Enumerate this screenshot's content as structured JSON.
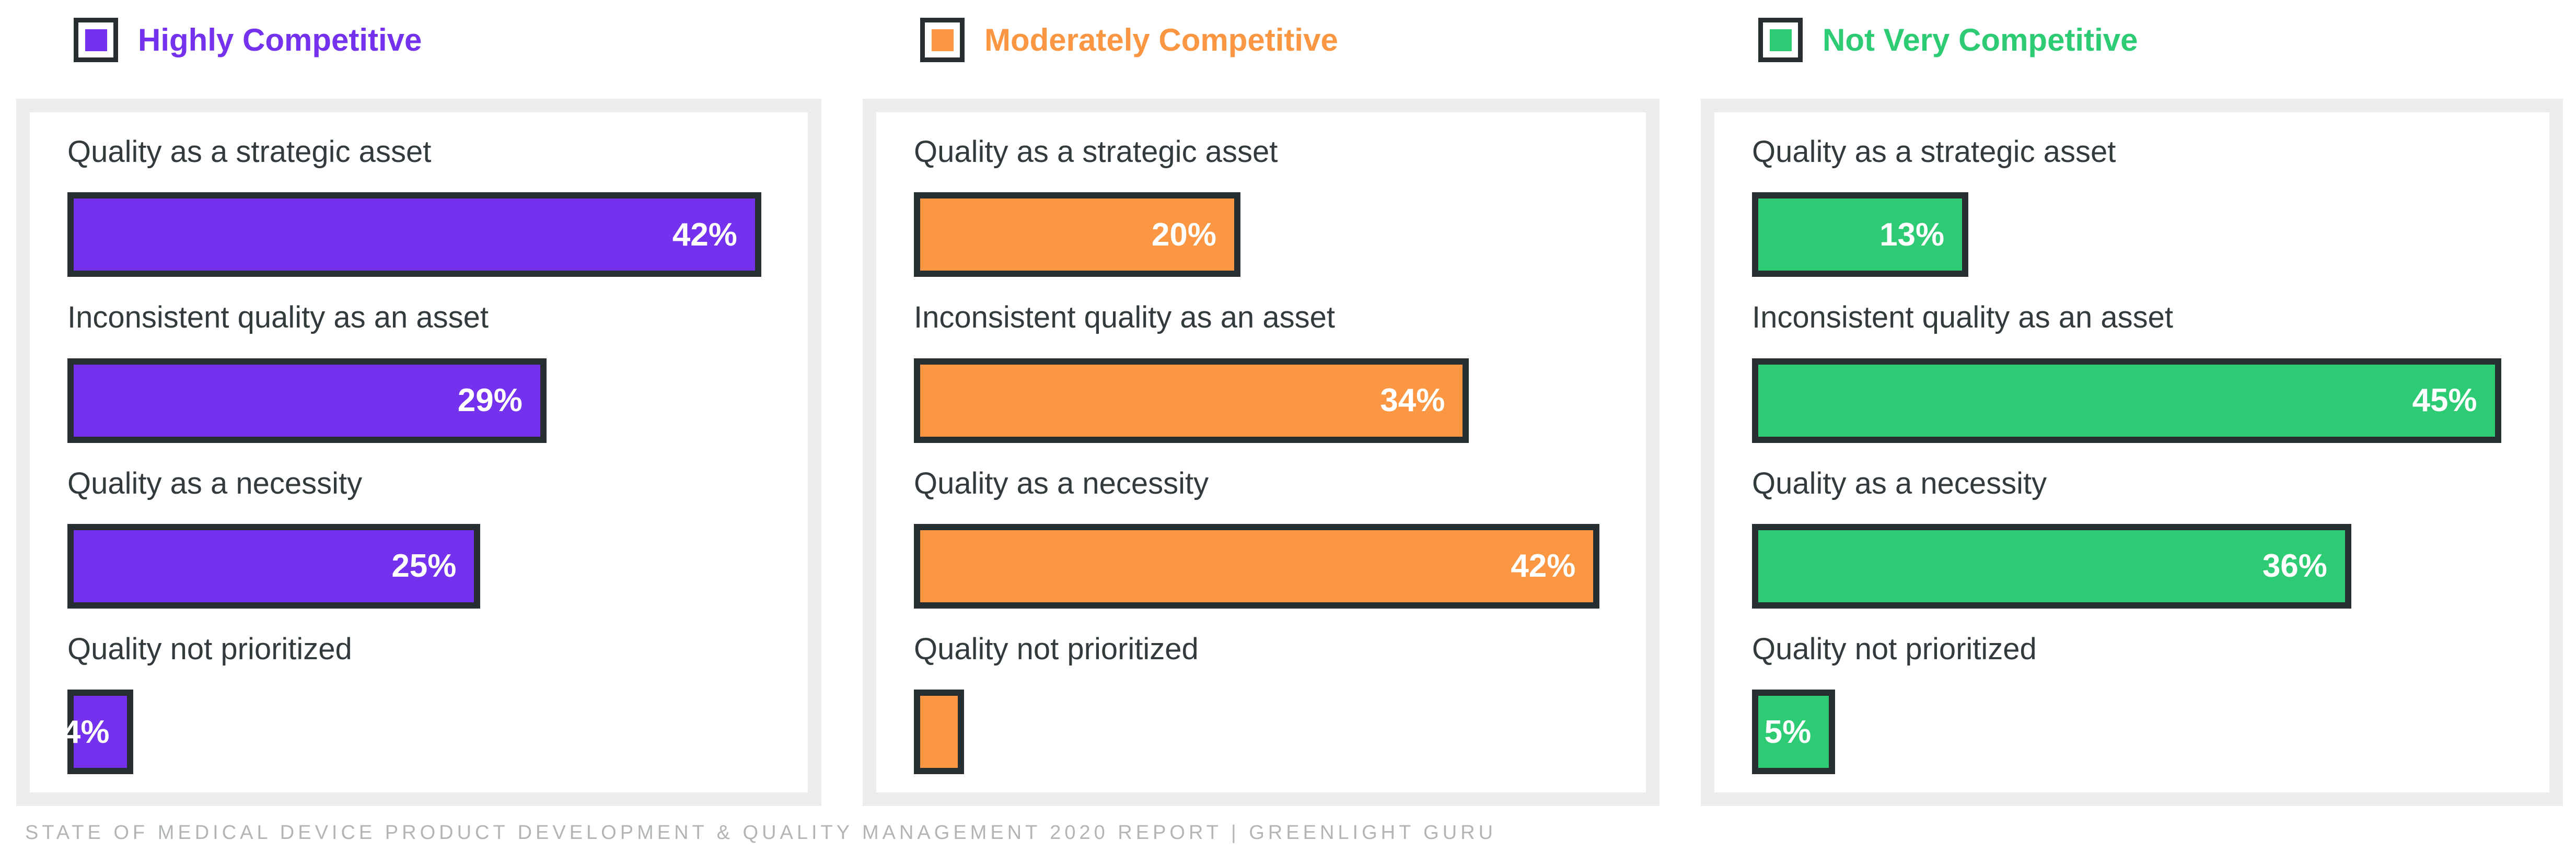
{
  "legend": [
    {
      "label": "Highly Competitive",
      "color": "#7432ef"
    },
    {
      "label": "Moderately Competitive",
      "color": "#fb9743"
    },
    {
      "label": "Not Very Competitive",
      "color": "#2dcb73"
    }
  ],
  "footer": {
    "source_line": "STATE OF MEDICAL DEVICE PRODUCT DEVELOPMENT & QUALITY MANAGEMENT 2020 REPORT | GREENLIGHT GURU"
  },
  "colors": {
    "purple": "#7432ef",
    "orange": "#fb9743",
    "green": "#2dcb73",
    "bar_border": "#272e31",
    "label_text": "#333a3d",
    "panel_frame": "#ebecec",
    "value_text": "#ffffff",
    "footer_text": "#b2b5b6"
  },
  "chart_data": [
    {
      "type": "bar",
      "orientation": "horizontal",
      "title": "Highly Competitive",
      "color": "#7432ef",
      "unit": "percent",
      "categories": [
        "Quality as a strategic asset",
        "Inconsistent quality as an asset",
        "Quality as a necessity",
        "Quality not prioritized"
      ],
      "values": [
        42,
        29,
        25,
        4
      ],
      "value_labels": [
        "42%",
        "29%",
        "25%",
        "4%"
      ]
    },
    {
      "type": "bar",
      "orientation": "horizontal",
      "title": "Moderately Competitive",
      "color": "#fb9743",
      "unit": "percent",
      "categories": [
        "Quality as a strategic asset",
        "Inconsistent quality as an asset",
        "Quality as a necessity",
        "Quality not prioritized"
      ],
      "values": [
        20,
        34,
        42,
        3
      ],
      "value_labels": [
        "20%",
        "34%",
        "42%",
        ""
      ],
      "note": "last bar shown without a printed label; ~3% estimated from bar width"
    },
    {
      "type": "bar",
      "orientation": "horizontal",
      "title": "Not Very Competitive",
      "color": "#2dcb73",
      "unit": "percent",
      "categories": [
        "Quality as a strategic asset",
        "Inconsistent quality as an asset",
        "Quality as a necessity",
        "Quality not prioritized"
      ],
      "values": [
        13,
        45,
        36,
        5
      ],
      "value_labels": [
        "13%",
        "45%",
        "36%",
        "5%"
      ]
    }
  ]
}
